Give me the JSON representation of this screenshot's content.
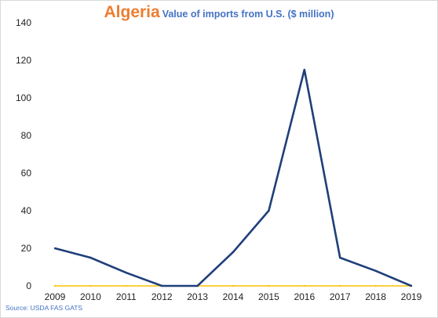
{
  "header": {
    "country": "Algeria",
    "subtitle": "Value of imports from U.S. ($ million)"
  },
  "footer": {
    "source": "Source: USDA FAS GATS"
  },
  "colors": {
    "series_line": "#1F3F7A",
    "zero_line": "#FFC000",
    "country_title": "#ED7D31",
    "subtitle": "#4472C4"
  },
  "chart_data": {
    "type": "line",
    "x": [
      "2009",
      "2010",
      "2011",
      "2012",
      "2013",
      "2014",
      "2015",
      "2016",
      "2017",
      "2018",
      "2019"
    ],
    "series": [
      {
        "values": [
          20,
          15,
          7,
          0,
          0,
          18,
          40,
          115,
          15,
          8,
          0
        ]
      },
      {
        "values": [
          0,
          0,
          0,
          0,
          0,
          0,
          0,
          0,
          0,
          0,
          0
        ]
      }
    ],
    "ylim": [
      0,
      140
    ],
    "yticks": [
      0,
      20,
      40,
      60,
      80,
      100,
      120,
      140
    ],
    "grid": false,
    "legend": "none"
  }
}
